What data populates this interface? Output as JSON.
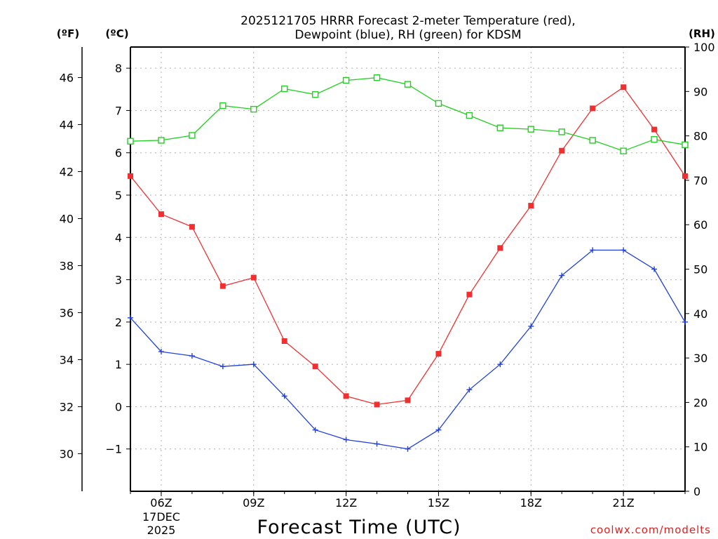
{
  "chart_data": {
    "type": "line",
    "title_line1": "2025121705 HRRR Forecast 2-meter Temperature (red),",
    "title_line2": "Dewpoint (blue), RH (green) for KDSM",
    "xlabel": "Forecast Time (UTC)",
    "credit": "coolwx.com/modelts",
    "unit_labels": {
      "fahrenheit": "(ºF)",
      "celsius": "(ºC)",
      "rh": "(RH)"
    },
    "x": [
      5,
      6,
      7,
      8,
      9,
      10,
      11,
      12,
      13,
      14,
      15,
      16,
      17,
      18,
      19,
      20,
      21,
      22,
      23
    ],
    "xlim": [
      5,
      23
    ],
    "x_ticks": [
      {
        "hour": 6,
        "label": "06Z",
        "sub": [
          "17DEC",
          "2025"
        ]
      },
      {
        "hour": 9,
        "label": "09Z",
        "sub": []
      },
      {
        "hour": 12,
        "label": "12Z",
        "sub": []
      },
      {
        "hour": 15,
        "label": "15Z",
        "sub": []
      },
      {
        "hour": 18,
        "label": "18Z",
        "sub": []
      },
      {
        "hour": 21,
        "label": "21Z",
        "sub": []
      }
    ],
    "celsius_axis": {
      "range": [
        -2,
        8.5
      ],
      "ticks": [
        -1,
        0,
        1,
        2,
        3,
        4,
        5,
        6,
        7,
        8
      ],
      "tick_labels": [
        "−1",
        "0",
        "1",
        "2",
        "3",
        "4",
        "5",
        "6",
        "7",
        "8"
      ]
    },
    "fahrenheit_axis": {
      "ticks": [
        30,
        32,
        34,
        36,
        38,
        40,
        42,
        44,
        46
      ],
      "tick_labels": [
        "30",
        "32",
        "34",
        "36",
        "38",
        "40",
        "42",
        "44",
        "46"
      ]
    },
    "rh_axis": {
      "range": [
        0,
        100
      ],
      "ticks": [
        0,
        10,
        20,
        30,
        40,
        50,
        60,
        70,
        80,
        90,
        100
      ],
      "tick_labels": [
        "0",
        "10",
        "20",
        "30",
        "40",
        "50",
        "60",
        "70",
        "80",
        "90",
        "100"
      ]
    },
    "series": [
      {
        "name": "2-meter Temperature",
        "axis": "celsius",
        "color": "#f03030",
        "marker": "filled-square",
        "values": [
          5.45,
          4.55,
          4.25,
          2.85,
          3.05,
          1.55,
          0.95,
          0.25,
          0.05,
          0.15,
          1.25,
          2.65,
          3.75,
          4.75,
          6.05,
          7.05,
          7.55,
          6.55,
          5.45
        ]
      },
      {
        "name": "Dewpoint",
        "axis": "celsius",
        "color": "#2040e0",
        "marker": "plus",
        "values": [
          2.1,
          1.3,
          1.2,
          0.95,
          1.0,
          0.25,
          -0.55,
          -0.78,
          -0.88,
          -1.0,
          -0.55,
          0.4,
          1.0,
          1.9,
          3.1,
          3.7,
          3.7,
          3.25,
          2.0
        ]
      },
      {
        "name": "RH",
        "axis": "rh",
        "color": "#20d020",
        "marker": "open-square",
        "values": [
          78.8,
          79.0,
          80.1,
          86.8,
          86.0,
          90.6,
          89.3,
          92.5,
          93.1,
          91.6,
          87.3,
          84.6,
          81.8,
          81.5,
          80.9,
          79.0,
          76.6,
          79.2,
          78.0
        ]
      }
    ]
  }
}
